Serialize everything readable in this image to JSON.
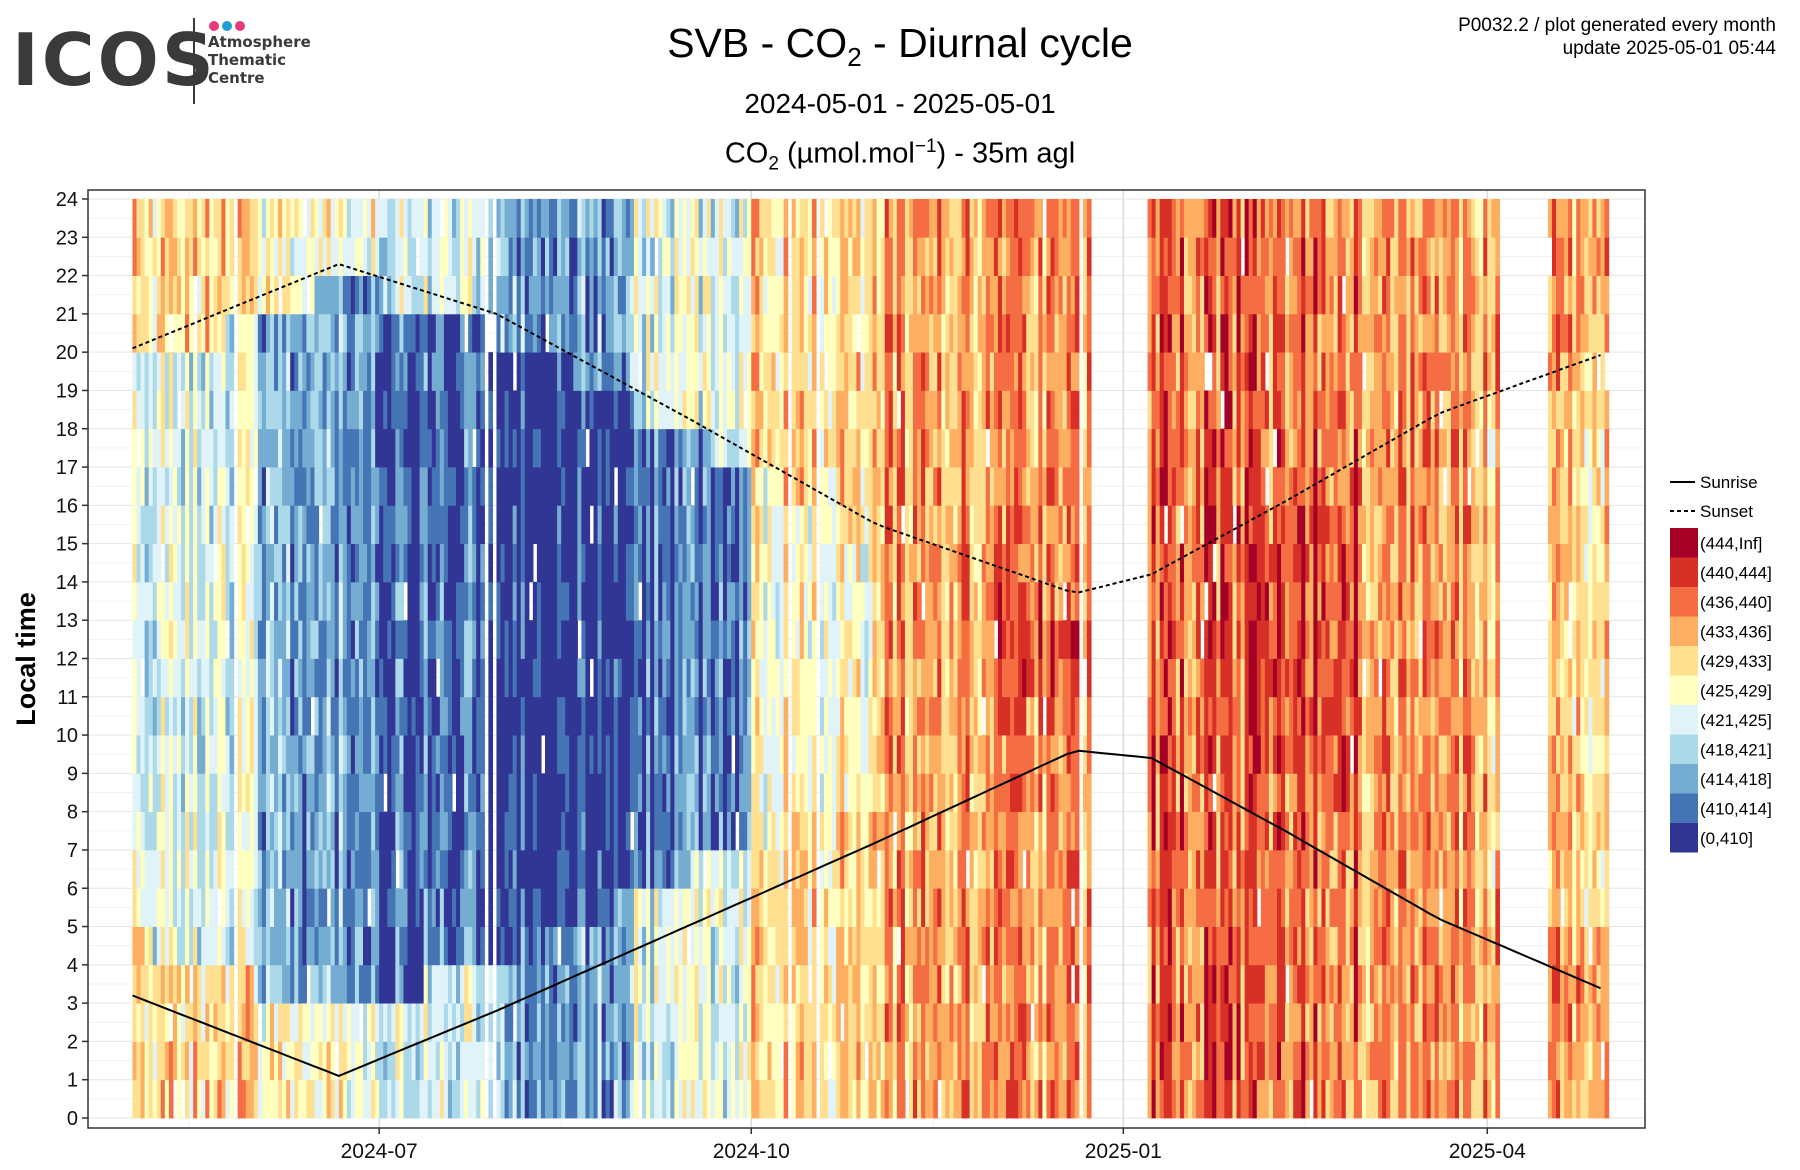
{
  "logo": {
    "wordmark": "ICOS",
    "lines": [
      "Atmosphere",
      "Thematic",
      "Centre"
    ],
    "dot_colors": [
      "#e8397a",
      "#1d9fd6",
      "#e8397a"
    ]
  },
  "header": {
    "title_prefix": "SVB - CO",
    "title_sub": "2",
    "title_suffix": " - Diurnal cycle",
    "date_range": "2024-05-01 - 2025-05-01",
    "subtitle_prefix": "CO",
    "subtitle_sub": "2",
    "subtitle_mid": " (µmol.mol",
    "subtitle_sup": "−1",
    "subtitle_suffix": ") - 35m agl",
    "meta_line1": "P0032.2 / plot generated every month",
    "meta_line2": "update  2025-05-01 05:44"
  },
  "chart_data": {
    "type": "heatmap",
    "x_axis": {
      "label": "",
      "range": [
        "2024-05-01",
        "2025-05-01"
      ],
      "ticks": [
        "2024-07",
        "2024-10",
        "2025-01",
        "2025-04"
      ]
    },
    "y_axis": {
      "label": "Local time",
      "range": [
        0,
        24
      ],
      "ticks": [
        0,
        1,
        2,
        3,
        4,
        5,
        6,
        7,
        8,
        9,
        10,
        11,
        12,
        13,
        14,
        15,
        16,
        17,
        18,
        19,
        20,
        21,
        22,
        23,
        24
      ]
    },
    "grid": true,
    "legend_position": "right",
    "lines": [
      {
        "name": "Sunrise",
        "style": "solid",
        "points": [
          [
            "2024-05-01",
            3.2
          ],
          [
            "2024-06-21",
            1.1
          ],
          [
            "2024-07-30",
            2.8
          ],
          [
            "2024-09-15",
            5.0
          ],
          [
            "2024-11-01",
            7.2
          ],
          [
            "2024-12-20",
            9.6
          ],
          [
            "2025-01-08",
            9.4
          ],
          [
            "2025-02-10",
            7.5
          ],
          [
            "2025-03-20",
            5.2
          ],
          [
            "2025-05-01",
            3.3
          ]
        ]
      },
      {
        "name": "Sunset",
        "style": "dashed",
        "points": [
          [
            "2024-05-01",
            20.1
          ],
          [
            "2024-06-21",
            22.3
          ],
          [
            "2024-07-30",
            21.0
          ],
          [
            "2024-09-15",
            18.3
          ],
          [
            "2024-11-01",
            15.5
          ],
          [
            "2024-12-20",
            13.7
          ],
          [
            "2025-01-08",
            14.2
          ],
          [
            "2025-02-10",
            16.1
          ],
          [
            "2025-03-20",
            18.4
          ],
          [
            "2025-05-01",
            20.0
          ]
        ]
      }
    ],
    "color_classes": [
      {
        "label": "(444,Inf]",
        "color": "#a50026"
      },
      {
        "label": "(440,444]",
        "color": "#d73027"
      },
      {
        "label": "(436,440]",
        "color": "#f46d43"
      },
      {
        "label": "(433,436]",
        "color": "#fdae61"
      },
      {
        "label": "(429,433]",
        "color": "#fee090"
      },
      {
        "label": "(425,429]",
        "color": "#ffffbf"
      },
      {
        "label": "(421,425]",
        "color": "#e0f3f8"
      },
      {
        "label": "(418,421]",
        "color": "#abd9e9"
      },
      {
        "label": "(414,418]",
        "color": "#74add1"
      },
      {
        "label": "(410,414]",
        "color": "#4575b4"
      },
      {
        "label": "(0,410]",
        "color": "#313695"
      }
    ],
    "missing_periods": [
      [
        "2024-12-24",
        "2025-01-07"
      ],
      [
        "2025-04-04",
        "2025-04-16"
      ]
    ],
    "monthly_typical_class": [
      {
        "month": "2024-05",
        "night": "(429,433]",
        "day": "(421,425]"
      },
      {
        "month": "2024-06",
        "night": "(425,429]",
        "day": "(414,418]"
      },
      {
        "month": "2024-07",
        "night": "(421,425]",
        "day": "(410,414]"
      },
      {
        "month": "2024-08",
        "night": "(414,418]",
        "day": "(0,410]"
      },
      {
        "month": "2024-09",
        "night": "(421,425]",
        "day": "(410,414]"
      },
      {
        "month": "2024-10",
        "night": "(429,433]",
        "day": "(425,429]"
      },
      {
        "month": "2024-11",
        "night": "(433,436]",
        "day": "(433,436]"
      },
      {
        "month": "2024-12",
        "night": "(433,436]",
        "day": "(436,440]"
      },
      {
        "month": "2025-01",
        "night": "(436,440]",
        "day": "(436,440]"
      },
      {
        "month": "2025-02",
        "night": "(436,440]",
        "day": "(440,444]"
      },
      {
        "month": "2025-03",
        "night": "(433,436]",
        "day": "(433,436]"
      },
      {
        "month": "2025-04",
        "night": "(433,436]",
        "day": "(429,433]"
      }
    ]
  }
}
